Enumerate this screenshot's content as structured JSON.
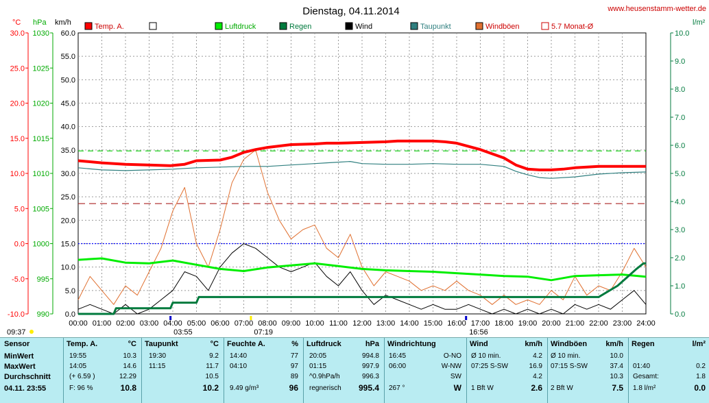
{
  "header": {
    "title": "Dienstag, 04.11.2014",
    "site": "www.heusenstamm-wetter.de"
  },
  "axes": {
    "temp_unit": "°C",
    "press_unit": "hPa",
    "wind_unit": "km/h",
    "rain_unit": "l/m²",
    "temp_ticks": [
      "30.0",
      "25.0",
      "20.0",
      "15.0",
      "10.0",
      "5.0",
      "0.0",
      "-5.0",
      "-10.0"
    ],
    "press_ticks": [
      "1030",
      "1025",
      "1020",
      "1015",
      "1010",
      "1005",
      "1000",
      "995",
      "990"
    ],
    "wind_ticks": [
      "60.0",
      "55.0",
      "50.0",
      "45.0",
      "40.0",
      "35.0",
      "30.0",
      "25.0",
      "20.0",
      "15.0",
      "10.0",
      "5.0",
      "0.0"
    ],
    "rain_ticks": [
      "10.0",
      "9.0",
      "8.0",
      "7.0",
      "6.0",
      "5.0",
      "4.0",
      "3.0",
      "2.0",
      "1.0",
      "0.0"
    ],
    "x_ticks": [
      "00:00",
      "01:00",
      "02:00",
      "03:00",
      "04:00",
      "05:00",
      "06:00",
      "07:00",
      "08:00",
      "09:00",
      "10:00",
      "11:00",
      "12:00",
      "13:00",
      "14:00",
      "15:00",
      "16:00",
      "17:00",
      "18:00",
      "19:00",
      "20:00",
      "21:00",
      "22:00",
      "23:00",
      "24:00"
    ]
  },
  "legend": [
    {
      "label": "Temp. A.",
      "color": "#ff0000"
    },
    {
      "label": "",
      "color": "#ffffff"
    },
    {
      "label": "Luftdruck",
      "color": "#00ee00"
    },
    {
      "label": "Regen",
      "color": "#007a3d"
    },
    {
      "label": "Wind",
      "color": "#000000"
    },
    {
      "label": "Taupunkt",
      "color": "#2f7f7f"
    },
    {
      "label": "Windböen",
      "color": "#e07030"
    },
    {
      "label": "5.7 Monat-Ø",
      "color": "#cc0000"
    }
  ],
  "markers": {
    "bottom_left_time": "09:37",
    "min_temp_time": "03:55",
    "max_temp_time": "07:19",
    "max_gust_time": "16:56"
  },
  "chart_data": {
    "type": "line",
    "x_unit": "hours",
    "xlim": [
      0,
      24
    ],
    "series": [
      {
        "name": "Temp. A.",
        "axis": "temp",
        "color": "#ff0000",
        "x": [
          0,
          1,
          2,
          3,
          3.9,
          4.5,
          5,
          6,
          6.5,
          7,
          7.5,
          8,
          9,
          10,
          10.5,
          11,
          12,
          13,
          13.5,
          14,
          15,
          15.5,
          16,
          17,
          18,
          18.5,
          19,
          19.5,
          20,
          20.5,
          21,
          22,
          23,
          24
        ],
        "y": [
          11.8,
          11.5,
          11.3,
          11.2,
          11.1,
          11.3,
          11.8,
          11.9,
          12.3,
          13.0,
          13.4,
          13.7,
          14.1,
          14.2,
          14.3,
          14.3,
          14.4,
          14.5,
          14.6,
          14.6,
          14.6,
          14.5,
          14.3,
          13.4,
          12.2,
          11.2,
          10.6,
          10.5,
          10.5,
          10.6,
          10.8,
          11.0,
          11.0,
          11.0
        ]
      },
      {
        "name": "Taupunkt",
        "axis": "temp",
        "color": "#2f7f7f",
        "x": [
          0,
          1,
          2,
          3,
          4,
          5,
          6,
          7,
          8,
          9,
          10,
          10.5,
          11,
          11.5,
          12,
          13,
          14,
          15,
          16,
          17,
          18,
          18.5,
          19,
          19.5,
          20,
          21,
          22,
          23,
          24
        ],
        "y": [
          10.8,
          10.5,
          10.4,
          10.5,
          10.6,
          10.8,
          10.9,
          11.0,
          11.0,
          11.2,
          11.4,
          11.5,
          11.6,
          11.7,
          11.4,
          11.3,
          11.3,
          11.4,
          11.3,
          11.3,
          11.0,
          10.3,
          9.8,
          9.4,
          9.3,
          9.5,
          9.9,
          10.1,
          10.2
        ]
      },
      {
        "name": "Luftdruck",
        "axis": "press",
        "color": "#00ee00",
        "x": [
          0,
          1,
          2,
          3,
          4,
          5,
          6,
          7,
          8,
          9,
          10,
          11,
          12,
          13,
          14,
          15,
          16,
          17,
          18,
          19,
          20,
          21,
          22,
          23,
          24
        ],
        "y": [
          997.7,
          997.9,
          997.3,
          997.2,
          997.6,
          997.0,
          996.4,
          996.1,
          996.6,
          996.9,
          997.2,
          996.8,
          996.4,
          996.2,
          996.1,
          996.0,
          995.8,
          995.6,
          995.4,
          995.3,
          994.8,
          995.4,
          995.5,
          995.6,
          995.3
        ]
      },
      {
        "name": "Regen",
        "axis": "rain",
        "color": "#007a3d",
        "x": [
          0,
          1.5,
          1.6,
          3.9,
          4.0,
          5.0,
          5.1,
          12,
          22,
          22.4,
          22.8,
          23.2,
          23.6,
          23.9,
          24
        ],
        "y": [
          0,
          0,
          0.2,
          0.2,
          0.4,
          0.4,
          0.6,
          0.6,
          0.6,
          0.8,
          1.0,
          1.3,
          1.6,
          1.8,
          1.8
        ]
      },
      {
        "name": "Wind",
        "axis": "wind",
        "color": "#000000",
        "x": [
          0,
          0.5,
          1,
          1.5,
          2,
          2.5,
          3,
          3.5,
          4,
          4.5,
          5,
          5.5,
          6,
          6.5,
          7,
          7.5,
          8,
          8.5,
          9,
          9.5,
          10,
          10.5,
          11,
          11.5,
          12,
          12.5,
          13,
          13.5,
          14,
          14.5,
          15,
          15.5,
          16,
          16.5,
          17,
          17.5,
          18,
          18.5,
          19,
          19.5,
          20,
          20.5,
          21,
          21.5,
          22,
          22.5,
          23,
          23.5,
          24
        ],
        "y": [
          1,
          2,
          1,
          0,
          2,
          0,
          1,
          3,
          5,
          9,
          8,
          5,
          10,
          13,
          15,
          14,
          12,
          10,
          9,
          10,
          11,
          8,
          6,
          9,
          5,
          2,
          4,
          3,
          2,
          1,
          2,
          1,
          1,
          2,
          1,
          0,
          1,
          0,
          1,
          0,
          1,
          0,
          2,
          1,
          2,
          1,
          3,
          5,
          2
        ]
      },
      {
        "name": "Windböen",
        "axis": "wind",
        "color": "#e07030",
        "x": [
          0,
          0.5,
          1,
          1.5,
          2,
          2.5,
          3,
          3.5,
          4,
          4.5,
          5,
          5.5,
          6,
          6.5,
          7,
          7.5,
          8,
          8.5,
          9,
          9.5,
          10,
          10.5,
          11,
          11.5,
          12,
          12.5,
          13,
          13.5,
          14,
          14.5,
          15,
          15.5,
          16,
          16.5,
          17,
          17.5,
          18,
          18.5,
          19,
          19.5,
          20,
          20.5,
          21,
          21.5,
          22,
          22.5,
          23,
          23.5,
          24
        ],
        "y": [
          3,
          8,
          5,
          2,
          6,
          4,
          9,
          14,
          22,
          27,
          15,
          10,
          18,
          28,
          33,
          35,
          26,
          20,
          16,
          18,
          19,
          14,
          12,
          17,
          10,
          6,
          9,
          8,
          7,
          5,
          6,
          5,
          7,
          5,
          4,
          2,
          4,
          2,
          3,
          2,
          5,
          3,
          8,
          4,
          6,
          5,
          9,
          14,
          10
        ]
      }
    ],
    "reference_lines": [
      {
        "name": "5.7 Monat-Ø",
        "axis": "temp",
        "value": 5.7,
        "color": "#aa2222"
      },
      {
        "axis": "press",
        "value": 1013.2,
        "color": "#00cc00"
      },
      {
        "axis": "temp",
        "value": 0,
        "color": "#0000ff"
      }
    ],
    "axis_ranges": {
      "temp": [
        -10,
        30
      ],
      "press": [
        990,
        1030
      ],
      "wind": [
        0,
        60
      ],
      "rain": [
        0,
        10
      ]
    }
  },
  "stats": {
    "sensor": {
      "header": "Sensor",
      "rows": [
        "MinWert",
        "MaxWert",
        "Durchschnitt",
        "04.11. 23:55"
      ]
    },
    "temp": {
      "header": "Temp. A.",
      "unit": "°C",
      "rows": [
        [
          "19:55",
          "10.3"
        ],
        [
          "14:05",
          "14.6"
        ],
        [
          "(+ 6.59 )",
          "12.29"
        ],
        [
          "F: 96 %",
          "10.8"
        ]
      ]
    },
    "dew": {
      "header": "Taupunkt",
      "unit": "°C",
      "rows": [
        [
          "19:30",
          "9.2"
        ],
        [
          "11:15",
          "11.7"
        ],
        [
          "",
          "10.5"
        ],
        [
          "",
          "10.2"
        ]
      ]
    },
    "hum": {
      "header": "Feuchte A.",
      "unit": "%",
      "rows": [
        [
          "14:40",
          "77"
        ],
        [
          "04:10",
          "97"
        ],
        [
          "",
          "89"
        ],
        [
          "9.49 g/m³",
          "96"
        ]
      ]
    },
    "press": {
      "header": "Luftdruck",
      "unit": "hPa",
      "rows": [
        [
          "20:05",
          "994.8"
        ],
        [
          "01:15",
          "997.9"
        ],
        [
          "^0.9hPa/h",
          "996.3"
        ],
        [
          "regnerisch",
          "995.4"
        ]
      ]
    },
    "dir": {
      "header": "Windrichtung",
      "rows": [
        [
          "16:45",
          "O-NO"
        ],
        [
          "06:00",
          "W-NW"
        ],
        [
          "",
          "SW"
        ],
        [
          "267 °",
          "W"
        ]
      ]
    },
    "wind": {
      "header": "Wind",
      "unit": "km/h",
      "rows": [
        [
          "Ø 10 min.",
          "4.2"
        ],
        [
          "07:25  S-SW",
          "16.9"
        ],
        [
          "",
          "4.2"
        ],
        [
          "1 Bft W",
          "2.6"
        ]
      ]
    },
    "gust": {
      "header": "Windböen",
      "unit": "km/h",
      "rows": [
        [
          "Ø 10 min.",
          "10.0"
        ],
        [
          "07:15  S-SW",
          "37.4"
        ],
        [
          "",
          "10.3"
        ],
        [
          "2 Bft W",
          "7.5"
        ]
      ]
    },
    "rain": {
      "header": "Regen",
      "unit": "l/m²",
      "rows": [
        [
          "",
          ""
        ],
        [
          "01:40",
          "0.2"
        ],
        [
          "Gesamt:",
          "1.8"
        ],
        [
          "1.8 l/m²",
          "0.0"
        ]
      ]
    }
  }
}
